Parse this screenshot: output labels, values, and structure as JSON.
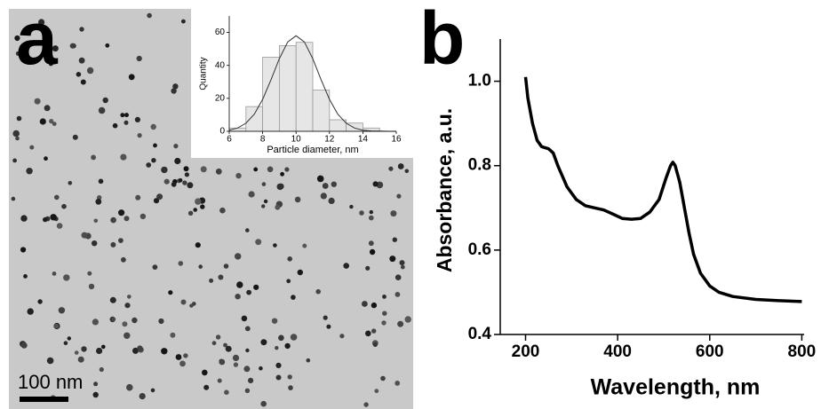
{
  "panel_labels": [
    "a",
    "b"
  ],
  "scale_bar_label": "100 nm",
  "chart_data": [
    {
      "type": "histogram",
      "x_label": "Particle diameter, nm",
      "y_label": "Quantity",
      "bins": [
        6,
        7,
        8,
        9,
        10,
        11,
        12,
        13,
        14,
        15
      ],
      "values": [
        2,
        15,
        45,
        52,
        54,
        25,
        7,
        5,
        2
      ],
      "color": "#e6e6e6",
      "fit": {
        "x": [
          6,
          6.5,
          7,
          7.5,
          8,
          8.5,
          9,
          9.5,
          10,
          10.5,
          11,
          11.5,
          12,
          12.5,
          13,
          13.5,
          14,
          14.5,
          15,
          15.5,
          16
        ],
        "values": [
          0.7,
          2,
          4.9,
          10.4,
          19.4,
          31.3,
          44.1,
          54.2,
          58,
          54.2,
          44.1,
          31.3,
          19.4,
          10.4,
          4.9,
          2,
          0.7,
          0.2,
          0.1,
          0,
          0
        ]
      },
      "xlim": [
        6,
        16
      ],
      "xticks": [
        6,
        8,
        10,
        12,
        14,
        16
      ],
      "ylim": [
        0,
        70
      ],
      "yticks": [
        0,
        20,
        40,
        60
      ]
    },
    {
      "type": "line",
      "x_label": "Wavelength, nm",
      "y_label": "Absorbance, a.u.",
      "x": [
        200,
        205,
        215,
        225,
        235,
        250,
        260,
        270,
        290,
        310,
        330,
        350,
        370,
        390,
        410,
        430,
        450,
        470,
        490,
        505,
        515,
        520,
        525,
        535,
        545,
        555,
        565,
        580,
        600,
        620,
        650,
        700,
        750,
        800
      ],
      "series": [
        {
          "color": "#000000",
          "values": [
            1.01,
            0.96,
            0.9,
            0.86,
            0.845,
            0.84,
            0.83,
            0.8,
            0.75,
            0.72,
            0.705,
            0.7,
            0.695,
            0.685,
            0.675,
            0.673,
            0.675,
            0.69,
            0.72,
            0.77,
            0.8,
            0.808,
            0.8,
            0.76,
            0.7,
            0.64,
            0.59,
            0.545,
            0.515,
            0.5,
            0.49,
            0.483,
            0.48,
            0.478
          ]
        }
      ],
      "xlim": [
        145,
        805
      ],
      "xticks": [
        200,
        400,
        600,
        800
      ],
      "ylim": [
        0.4,
        1.1
      ],
      "yticks": [
        0.4,
        0.6,
        0.8,
        {
          "value": 1,
          "label": "1.0"
        }
      ]
    }
  ]
}
